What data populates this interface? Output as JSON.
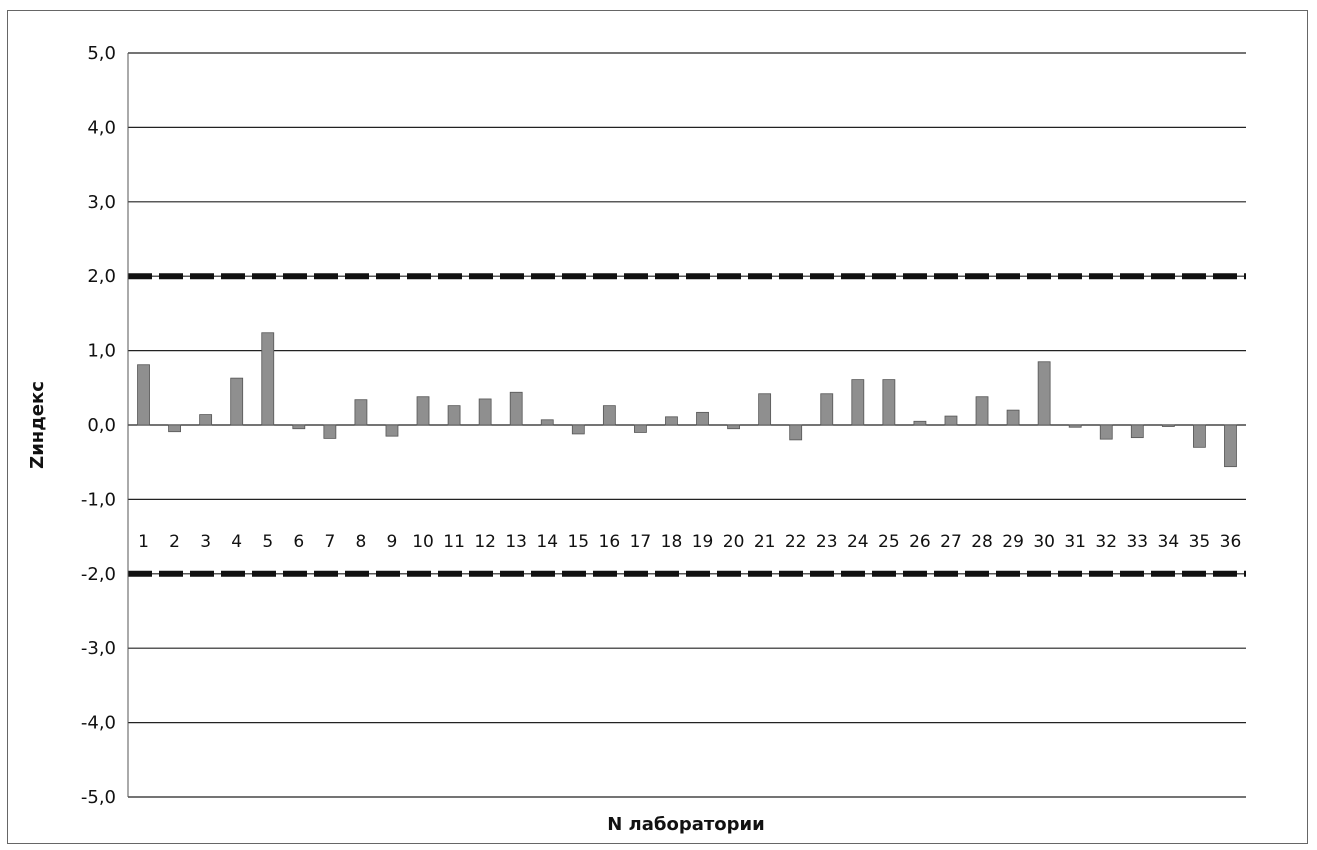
{
  "chart_data": {
    "type": "bar",
    "xlabel": "N лаборатории",
    "ylabel": "Zиндекс",
    "ylim": [
      -5,
      5
    ],
    "y_ticks": [
      "5,0",
      "4,0",
      "3,0",
      "2,0",
      "1,0",
      "0,0",
      "-1,0",
      "-2,0",
      "-3,0",
      "-4,0",
      "-5,0"
    ],
    "y_tick_values": [
      5,
      4,
      3,
      2,
      1,
      0,
      -1,
      -2,
      -3,
      -4,
      -5
    ],
    "categories": [
      "1",
      "2",
      "3",
      "4",
      "5",
      "6",
      "7",
      "8",
      "9",
      "10",
      "11",
      "12",
      "13",
      "14",
      "15",
      "16",
      "17",
      "18",
      "19",
      "20",
      "21",
      "22",
      "23",
      "24",
      "25",
      "26",
      "27",
      "28",
      "29",
      "30",
      "31",
      "32",
      "33",
      "34",
      "35",
      "36"
    ],
    "values": [
      0.81,
      -0.09,
      0.14,
      0.63,
      1.24,
      -0.05,
      -0.18,
      0.34,
      -0.15,
      0.38,
      0.26,
      0.35,
      0.44,
      0.07,
      -0.12,
      0.26,
      -0.1,
      0.11,
      0.17,
      -0.05,
      0.42,
      -0.2,
      0.42,
      0.61,
      0.61,
      0.05,
      0.12,
      0.38,
      0.2,
      0.85,
      -0.03,
      -0.19,
      -0.17,
      -0.01,
      -0.3,
      -0.56
    ],
    "reference_lines": [
      2,
      -2
    ],
    "grid": true,
    "colors": {
      "bar": "#8f8f8f",
      "bar_edge": "#555555",
      "grid": "#222222",
      "reference": "#111111"
    }
  }
}
